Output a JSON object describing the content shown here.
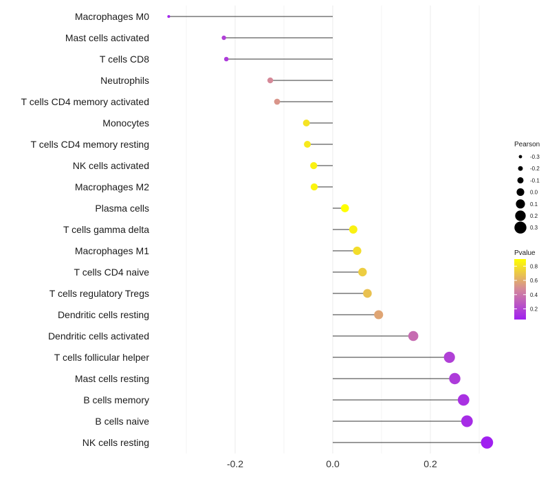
{
  "chart_data": {
    "type": "lollipop",
    "title": "",
    "xlabel": "",
    "ylabel": "",
    "xlim": [
      -0.35,
      0.33
    ],
    "x_ticks": [
      -0.2,
      0.0,
      0.2
    ],
    "x_tick_labels": [
      "-0.2",
      "0.0",
      "0.2"
    ],
    "categories": [
      "Macrophages M0",
      "Mast cells activated",
      "T cells CD8",
      "Neutrophils",
      "T cells CD4 memory activated",
      "Monocytes",
      "T cells CD4 memory resting",
      "NK cells activated",
      "Macrophages M2",
      "Plasma cells",
      "T cells gamma delta",
      "Macrophages M1",
      "T cells CD4 naive",
      "T cells regulatory  Tregs ",
      "Dendritic cells resting",
      "Dendritic cells activated",
      "T cells follicular helper",
      "Mast cells resting",
      "B cells memory",
      "B cells naive",
      "NK cells resting"
    ],
    "pearson": [
      -0.336,
      -0.223,
      -0.218,
      -0.128,
      -0.114,
      -0.054,
      -0.052,
      -0.039,
      -0.038,
      0.025,
      0.042,
      0.05,
      0.061,
      0.071,
      0.094,
      0.165,
      0.239,
      0.25,
      0.268,
      0.275,
      0.316
    ],
    "pvalue": [
      0.07,
      0.18,
      0.16,
      0.48,
      0.52,
      0.8,
      0.82,
      0.85,
      0.86,
      0.9,
      0.85,
      0.78,
      0.72,
      0.68,
      0.58,
      0.36,
      0.18,
      0.16,
      0.12,
      0.1,
      0.05
    ],
    "grid": true,
    "legends": {
      "size": {
        "title": "Pearson",
        "labels": [
          "-0.3",
          "-0.2",
          "-0.1",
          "0.0",
          "0.1",
          "0.2",
          "0.3"
        ],
        "values": [
          -0.3,
          -0.2,
          -0.1,
          0.0,
          0.1,
          0.2,
          0.3
        ],
        "placement": "right"
      },
      "color": {
        "title": "Pvalue",
        "labels": [
          "0.8",
          "0.6",
          "0.4",
          "0.2"
        ],
        "values": [
          0.8,
          0.6,
          0.4,
          0.2
        ],
        "range": [
          0.05,
          0.9
        ],
        "placement": "right"
      }
    },
    "colors": {
      "low_pvalue": "#a020f0",
      "mid_pvalue": "#d4889a",
      "high_pvalue": "#ffff00",
      "segment": "#333333",
      "grid": "#ebebeb"
    }
  }
}
